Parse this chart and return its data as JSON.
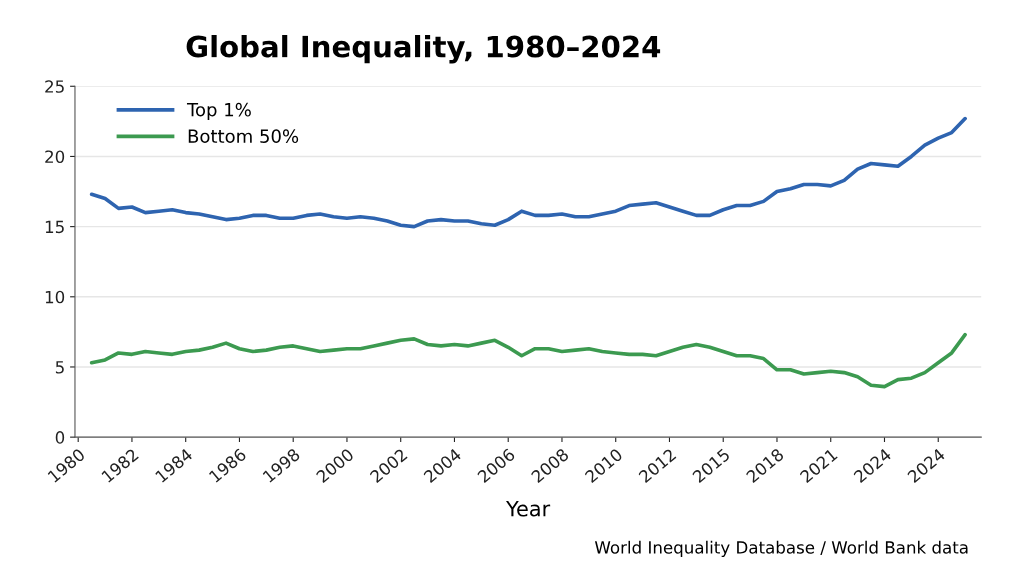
{
  "chart_data": {
    "type": "line",
    "title": "Global Inequality, 1980–2024",
    "xlabel": "Year",
    "annotations": [
      "World Inequality Database / World Bank data"
    ],
    "categories": [
      "1980",
      null,
      null,
      null,
      "1982",
      null,
      null,
      null,
      "1984",
      null,
      null,
      null,
      "1986",
      null,
      null,
      null,
      "1998",
      null,
      null,
      null,
      "2000",
      null,
      null,
      null,
      "2002",
      null,
      null,
      null,
      "2004",
      null,
      null,
      null,
      "2006",
      null,
      null,
      null,
      "2008",
      null,
      null,
      null,
      "2010",
      null,
      null,
      null,
      "2012",
      null,
      null,
      null,
      "2015",
      null,
      null,
      null,
      "2018",
      null,
      null,
      null,
      "2021",
      null,
      null,
      null,
      "2024",
      null,
      null,
      null,
      "2024",
      null,
      null,
      null
    ],
    "ylim": [
      0,
      25
    ],
    "yticks": [
      0,
      5,
      10,
      15,
      20,
      25
    ],
    "grid": "y",
    "legend": "top left",
    "series": [
      {
        "name": "Top 1%",
        "color": "#2e64b0",
        "values": [
          null,
          17.3,
          17.0,
          16.3,
          16.4,
          16.0,
          16.1,
          16.2,
          16.0,
          15.9,
          15.7,
          15.5,
          15.6,
          15.8,
          15.8,
          15.6,
          15.6,
          15.8,
          15.9,
          15.7,
          15.6,
          15.7,
          15.6,
          15.4,
          15.1,
          15.0,
          15.4,
          15.5,
          15.4,
          15.4,
          15.2,
          15.1,
          15.5,
          16.1,
          15.8,
          15.8,
          15.9,
          15.7,
          15.7,
          15.9,
          16.1,
          16.5,
          16.6,
          16.7,
          16.4,
          16.1,
          15.8,
          15.8,
          16.2,
          16.5,
          16.5,
          16.8,
          17.5,
          17.7,
          18.0,
          18.0,
          17.9,
          18.3,
          19.1,
          19.5,
          19.4,
          19.3,
          20.0,
          20.8,
          21.3,
          21.7,
          22.7,
          null
        ]
      },
      {
        "name": "Bottom 50%",
        "color": "#3c9a50",
        "values": [
          null,
          5.3,
          5.5,
          6.0,
          5.9,
          6.1,
          6.0,
          5.9,
          6.1,
          6.2,
          6.4,
          6.7,
          6.3,
          6.1,
          6.2,
          6.4,
          6.5,
          6.3,
          6.1,
          6.2,
          6.3,
          6.3,
          6.5,
          6.7,
          6.9,
          7.0,
          6.6,
          6.5,
          6.6,
          6.5,
          6.7,
          6.9,
          6.4,
          5.8,
          6.3,
          6.3,
          6.1,
          6.2,
          6.3,
          6.1,
          6.0,
          5.9,
          5.9,
          5.8,
          6.1,
          6.4,
          6.6,
          6.4,
          6.1,
          5.8,
          5.8,
          5.6,
          4.8,
          4.8,
          4.5,
          4.6,
          4.7,
          4.6,
          4.3,
          3.7,
          3.6,
          4.1,
          4.2,
          4.6,
          5.3,
          6.0,
          7.3,
          null
        ]
      }
    ]
  }
}
